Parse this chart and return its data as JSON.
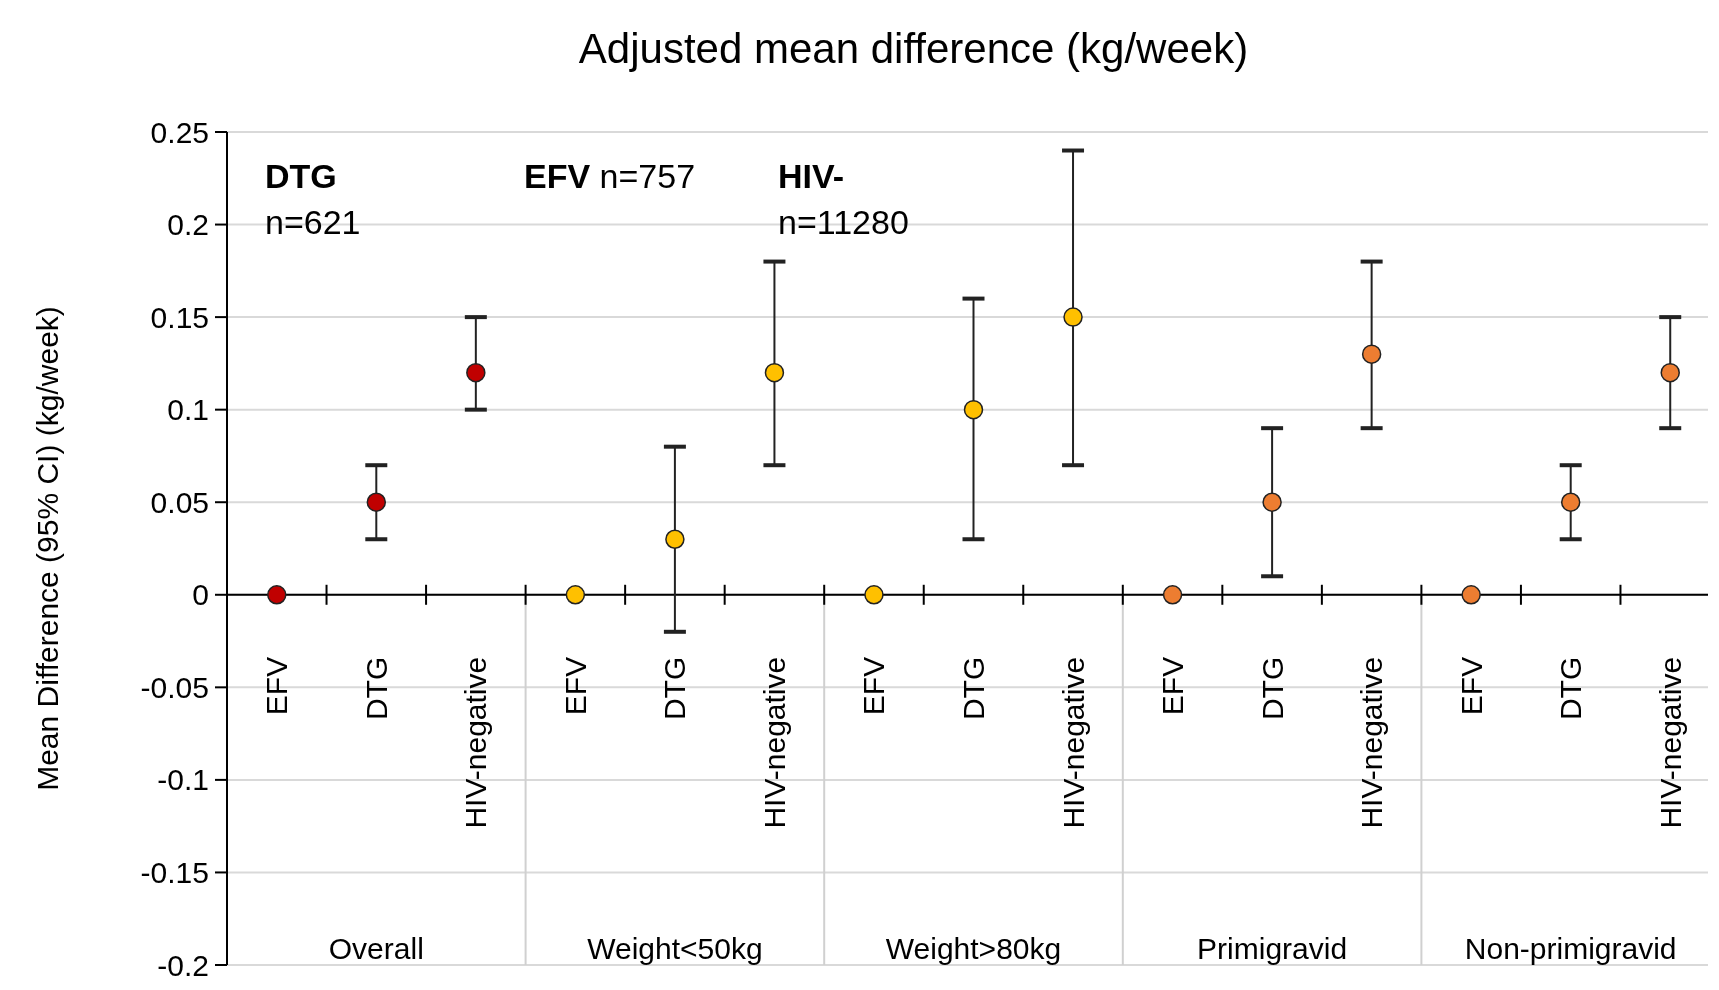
{
  "chart_data": {
    "type": "scatter",
    "title": "Adjusted mean difference (kg/week)",
    "ylabel": "Mean Difference (95% CI) (kg/week)",
    "categories": [
      "EFV",
      "DTG",
      "HIV-negative",
      "EFV",
      "DTG",
      "HIV-negative",
      "EFV",
      "DTG",
      "HIV-negative",
      "EFV",
      "DTG",
      "HIV-negative",
      "EFV",
      "DTG",
      "HIV-negative"
    ],
    "series": [
      {
        "values": [
          0,
          0.05,
          0.12,
          0,
          0.03,
          0.12,
          0,
          0.1,
          0.15,
          0,
          0.05,
          0.13,
          0,
          0.05,
          0.12
        ],
        "colors": [
          "#c00000",
          "#c00000",
          "#c00000",
          "#ffc000",
          "#ffc000",
          "#ffc000",
          "#ffc000",
          "#ffc000",
          "#ffc000",
          "#ed7d31",
          "#ed7d31",
          "#ed7d31",
          "#ed7d31",
          "#ed7d31",
          "#ed7d31"
        ],
        "errors": [
          null,
          [
            0.03,
            0.07
          ],
          [
            0.1,
            0.15
          ],
          null,
          [
            -0.02,
            0.08
          ],
          [
            0.07,
            0.18
          ],
          null,
          [
            0.03,
            0.16
          ],
          [
            0.07,
            0.24
          ],
          null,
          [
            0.01,
            0.09
          ],
          [
            0.09,
            0.18
          ],
          null,
          [
            0.03,
            0.07
          ],
          [
            0.09,
            0.15
          ]
        ]
      }
    ],
    "ylim": [
      -0.2,
      0.25
    ],
    "yticks": [
      -0.2,
      -0.15,
      -0.1,
      -0.05,
      0,
      0.05,
      0.1,
      0.15,
      0.2,
      0.25
    ],
    "grid": "y",
    "marker": "circle",
    "annotations": [
      "DTG n=621",
      "EFV n=757",
      "HIV- n=11280",
      "Overall",
      "Weight<50kg",
      "Weight>80kg",
      "Primigravid",
      "Non-primigravid"
    ]
  }
}
